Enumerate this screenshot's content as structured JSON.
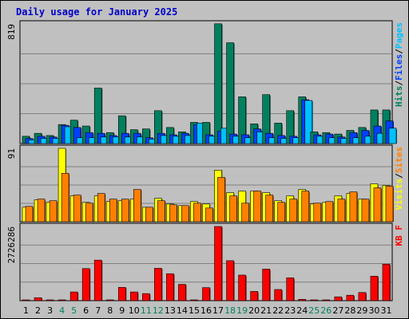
{
  "chart_data": {
    "title": "Daily usage for January 2025",
    "title_color": "#0000cc",
    "type": "bar",
    "categories": [
      "1",
      "2",
      "3",
      "4",
      "5",
      "6",
      "7",
      "8",
      "9",
      "10",
      "11",
      "12",
      "13",
      "14",
      "15",
      "16",
      "17",
      "18",
      "19",
      "20",
      "21",
      "22",
      "23",
      "24",
      "25",
      "26",
      "27",
      "28",
      "29",
      "30",
      "31"
    ],
    "weekend_days": [
      "4",
      "5",
      "11",
      "12",
      "18",
      "19",
      "25",
      "26"
    ],
    "weekend_color": "#00805f",
    "panels": [
      {
        "id": "hits",
        "ymax_label": "819",
        "ylim": [
          0,
          819
        ],
        "legend": [
          {
            "label": "Pages",
            "color": "#00c0ff"
          },
          {
            "label": "Files",
            "color": "#0040ff"
          },
          {
            "label": "Hits",
            "color": "#00805f"
          }
        ],
        "series": [
          {
            "name": "Hits",
            "color": "#00805f",
            "values": [
              50,
              70,
              55,
              130,
              160,
              120,
              380,
              75,
              190,
              95,
              100,
              225,
              110,
              80,
              145,
              145,
              820,
              690,
              320,
              135,
              335,
              140,
              225,
              320,
              80,
              75,
              65,
              90,
              110,
              230,
              230
            ]
          },
          {
            "name": "Files",
            "color": "#0040ff",
            "values": [
              35,
              50,
              45,
              125,
              110,
              75,
              70,
              55,
              70,
              70,
              40,
              70,
              60,
              70,
              130,
              60,
              85,
              65,
              60,
              100,
              70,
              55,
              50,
              300,
              60,
              65,
              45,
              75,
              90,
              120,
              155
            ]
          },
          {
            "name": "Pages",
            "color": "#00c0ff",
            "values": [
              25,
              35,
              35,
              115,
              40,
              40,
              45,
              45,
              45,
              45,
              30,
              55,
              50,
              55,
              140,
              50,
              105,
              50,
              40,
              80,
              40,
              35,
              40,
              295,
              50,
              40,
              35,
              40,
              50,
              70,
              105
            ]
          }
        ]
      },
      {
        "id": "visits",
        "ymax_label": "91",
        "ylim": [
          0,
          91
        ],
        "legend": [
          {
            "label": "Sites",
            "color": "#ff8000"
          },
          {
            "label": "Visits",
            "color": "#ffff00"
          }
        ],
        "series": [
          {
            "name": "Visits",
            "color": "#ffff00",
            "values": [
              18,
              27,
              24,
              91,
              32,
              24,
              32,
              25,
              26,
              28,
              18,
              29,
              22,
              20,
              25,
              22,
              64,
              36,
              38,
              38,
              36,
              26,
              32,
              40,
              22,
              24,
              32,
              35,
              28,
              47,
              45
            ]
          },
          {
            "name": "Sites",
            "color": "#ff8000",
            "values": [
              19,
              28,
              26,
              60,
              33,
              23,
              35,
              28,
              28,
              40,
              18,
              26,
              21,
              20,
              23,
              17,
              55,
              32,
              23,
              38,
              33,
              24,
              28,
              38,
              23,
              25,
              28,
              37,
              28,
              42,
              44
            ]
          }
        ]
      },
      {
        "id": "kb",
        "ymax_label": "2726286",
        "ylim": [
          0,
          2726286
        ],
        "legend": [
          {
            "label": "KB F",
            "color": "#ff0000"
          }
        ],
        "series": [
          {
            "name": "KB F",
            "color": "#ff0000",
            "values": [
              20000,
              110000,
              30000,
              30000,
              320000,
              1180000,
              1490000,
              30000,
              490000,
              320000,
              260000,
              1190000,
              990000,
              600000,
              30000,
              480000,
              2726286,
              1470000,
              940000,
              340000,
              1160000,
              410000,
              840000,
              50000,
              30000,
              30000,
              140000,
              200000,
              300000,
              900000,
              1340000
            ]
          }
        ]
      }
    ]
  }
}
